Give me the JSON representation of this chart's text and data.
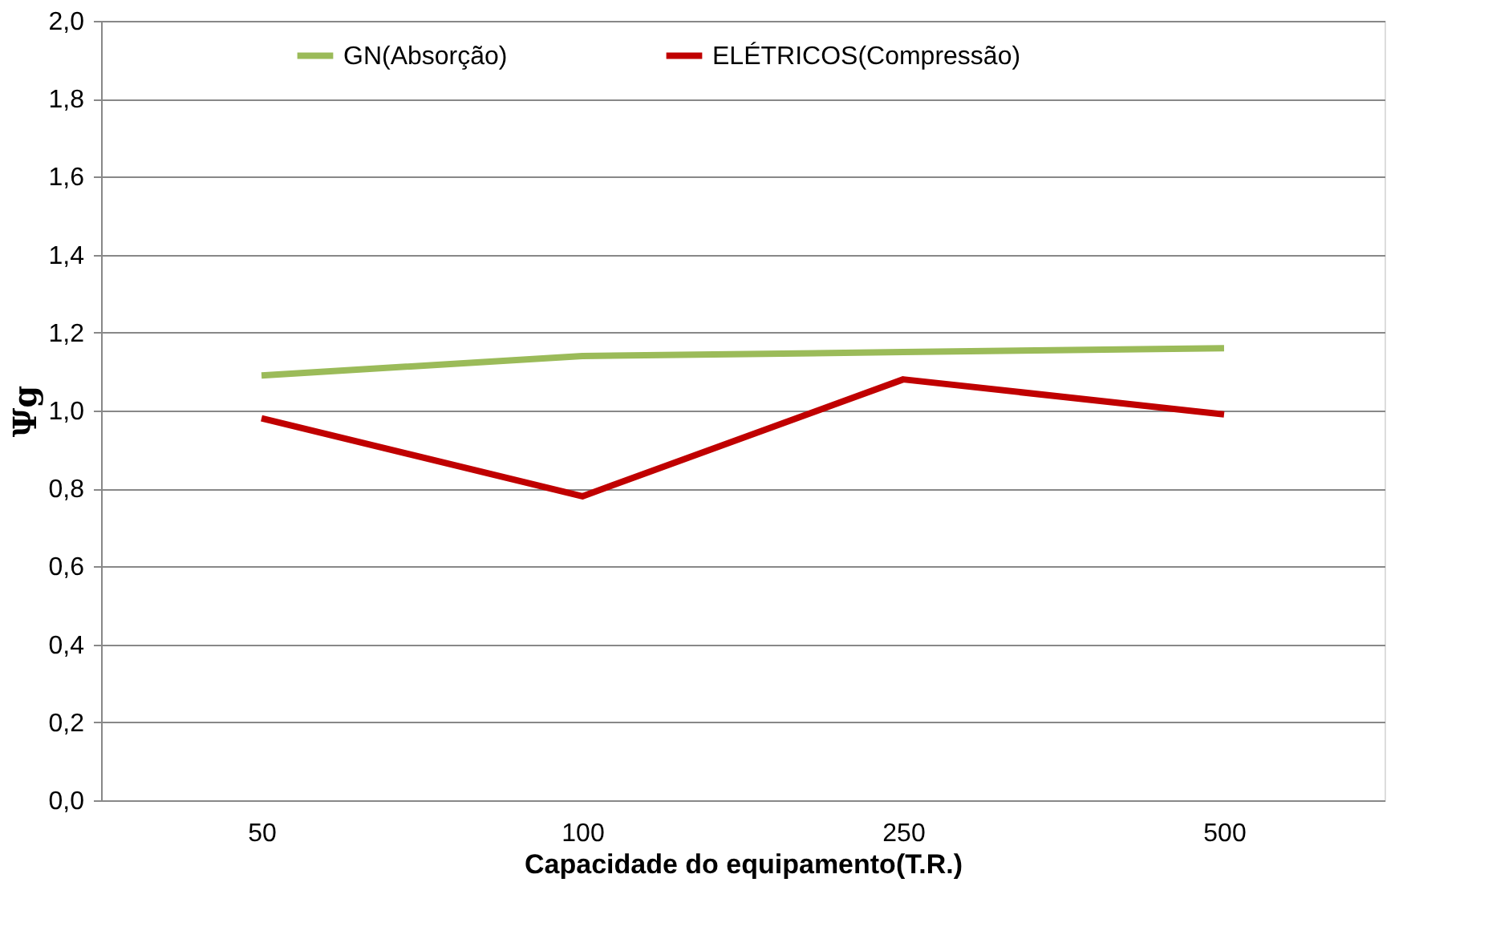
{
  "chart_data": {
    "type": "line",
    "xlabel": "Capacidade do equipamento(T.R.)",
    "ylabel": "Ψg",
    "categories": [
      "50",
      "100",
      "250",
      "500"
    ],
    "series": [
      {
        "name": "GN(Absorção)",
        "color": "#9bbb59",
        "values": [
          1.09,
          1.14,
          1.15,
          1.16
        ]
      },
      {
        "name": "ELÉTRICOS(Compressão)",
        "color": "#c00000",
        "values": [
          0.98,
          0.78,
          1.08,
          0.99
        ]
      }
    ],
    "ylim": [
      0,
      2
    ],
    "yticks": [
      {
        "value": 0,
        "label": "0,0"
      },
      {
        "value": 0.2,
        "label": "0,2"
      },
      {
        "value": 0.4,
        "label": "0,4"
      },
      {
        "value": 0.6,
        "label": "0,6"
      },
      {
        "value": 0.8,
        "label": "0,8"
      },
      {
        "value": 1,
        "label": "1,0"
      },
      {
        "value": 1.2,
        "label": "1,2"
      },
      {
        "value": 1.4,
        "label": "1,4"
      },
      {
        "value": 1.6,
        "label": "1,6"
      },
      {
        "value": 1.8,
        "label": "1,8"
      },
      {
        "value": 2,
        "label": "2,0"
      }
    ],
    "grid": "y",
    "legend": "top",
    "marker": "none",
    "line_style": "solid"
  }
}
